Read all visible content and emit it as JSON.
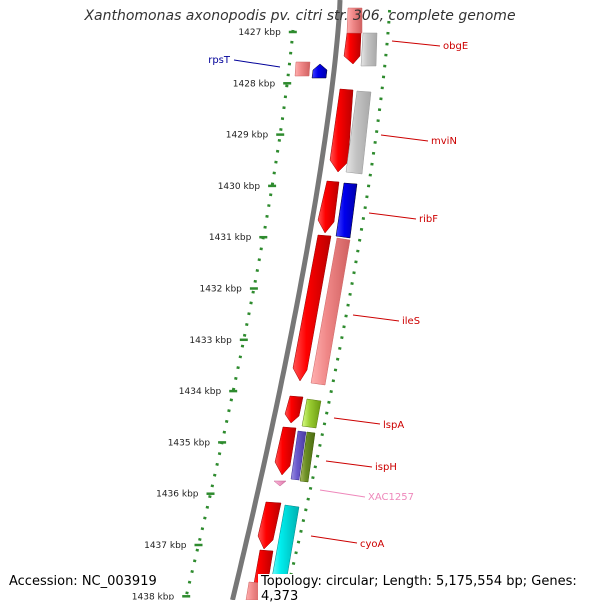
{
  "header": {
    "title": "Xanthomonas axonopodis pv. citri str. 306, complete genome"
  },
  "footer": {
    "accession": "Accession: NC_003919",
    "summary": "Topology: circular; Length: 5,175,554 bp; Genes: 4,373"
  },
  "ruler": {
    "unit": "kbp",
    "ticks": [
      {
        "pos": 1427,
        "label": "1427 kbp"
      },
      {
        "pos": 1428,
        "label": "1428 kbp"
      },
      {
        "pos": 1429,
        "label": "1429 kbp"
      },
      {
        "pos": 1430,
        "label": "1430 kbp"
      },
      {
        "pos": 1431,
        "label": "1431 kbp"
      },
      {
        "pos": 1432,
        "label": "1432 kbp"
      },
      {
        "pos": 1433,
        "label": "1433 kbp"
      },
      {
        "pos": 1434,
        "label": "1434 kbp"
      },
      {
        "pos": 1435,
        "label": "1435 kbp"
      },
      {
        "pos": 1436,
        "label": "1436 kbp"
      },
      {
        "pos": 1437,
        "label": "1437 kbp"
      },
      {
        "pos": 1438,
        "label": "1438 kbp"
      }
    ]
  },
  "gene_labels": [
    {
      "name": "obgE",
      "color": "#cc0000"
    },
    {
      "name": "rpsT",
      "color": "#000099"
    },
    {
      "name": "mviN",
      "color": "#cc0000"
    },
    {
      "name": "ribF",
      "color": "#cc0000"
    },
    {
      "name": "ileS",
      "color": "#cc0000"
    },
    {
      "name": "lspA",
      "color": "#cc0000"
    },
    {
      "name": "ispH",
      "color": "#cc0000"
    },
    {
      "name": "XAC1257",
      "color": "#ee88bb"
    },
    {
      "name": "cyoA",
      "color": "#cc0000"
    }
  ],
  "colors": {
    "backbone": "#777777",
    "ruler_dots": "#2e8b2e",
    "strand_forward": "#ff0000",
    "strand_reverse": "#ff0000"
  }
}
